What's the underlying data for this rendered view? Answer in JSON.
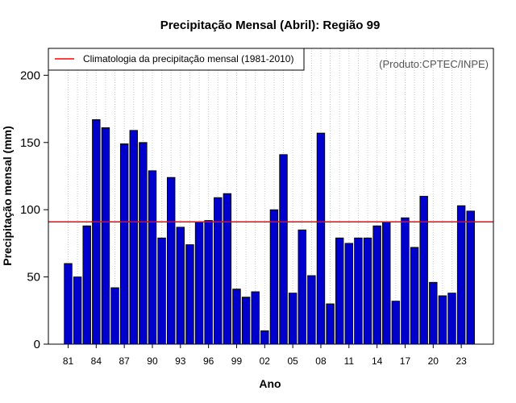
{
  "chart_data": {
    "type": "bar",
    "title": "Precipitação Mensal (Abril): Região 99",
    "xlabel": "Ano",
    "ylabel": "Precipitação mensal (mm)",
    "credit": "(Produto:CPTEC/INPE)",
    "ylim": [
      0,
      220
    ],
    "yticks": [
      0,
      50,
      100,
      150,
      200
    ],
    "grid": "vertical dotted",
    "legend_position": "top-left",
    "categories": [
      "81",
      "82",
      "83",
      "84",
      "85",
      "86",
      "87",
      "88",
      "89",
      "90",
      "91",
      "92",
      "93",
      "94",
      "95",
      "96",
      "97",
      "98",
      "99",
      "00",
      "01",
      "02",
      "03",
      "04",
      "05",
      "06",
      "07",
      "08",
      "09",
      "10",
      "11",
      "12",
      "13",
      "14",
      "15",
      "16",
      "17",
      "18",
      "19",
      "20",
      "21",
      "22",
      "23",
      "24"
    ],
    "xtick_labels": [
      "81",
      "84",
      "87",
      "90",
      "93",
      "96",
      "99",
      "02",
      "05",
      "08",
      "11",
      "14",
      "17",
      "20",
      "23"
    ],
    "series": [
      {
        "name": "Precipitação mensal",
        "color": "#0000CD",
        "values": [
          60,
          50,
          88,
          167,
          161,
          42,
          149,
          159,
          150,
          129,
          79,
          124,
          87,
          74,
          91,
          92,
          109,
          112,
          41,
          35,
          39,
          10,
          100,
          141,
          38,
          85,
          51,
          157,
          30,
          79,
          75,
          79,
          79,
          88,
          91,
          32,
          94,
          72,
          110,
          46,
          36,
          38,
          103,
          99
        ]
      }
    ],
    "reference_line": {
      "label": "Climatologia da precipitação mensal (1981-2010)",
      "value": 91,
      "color": "#FF0000"
    }
  }
}
